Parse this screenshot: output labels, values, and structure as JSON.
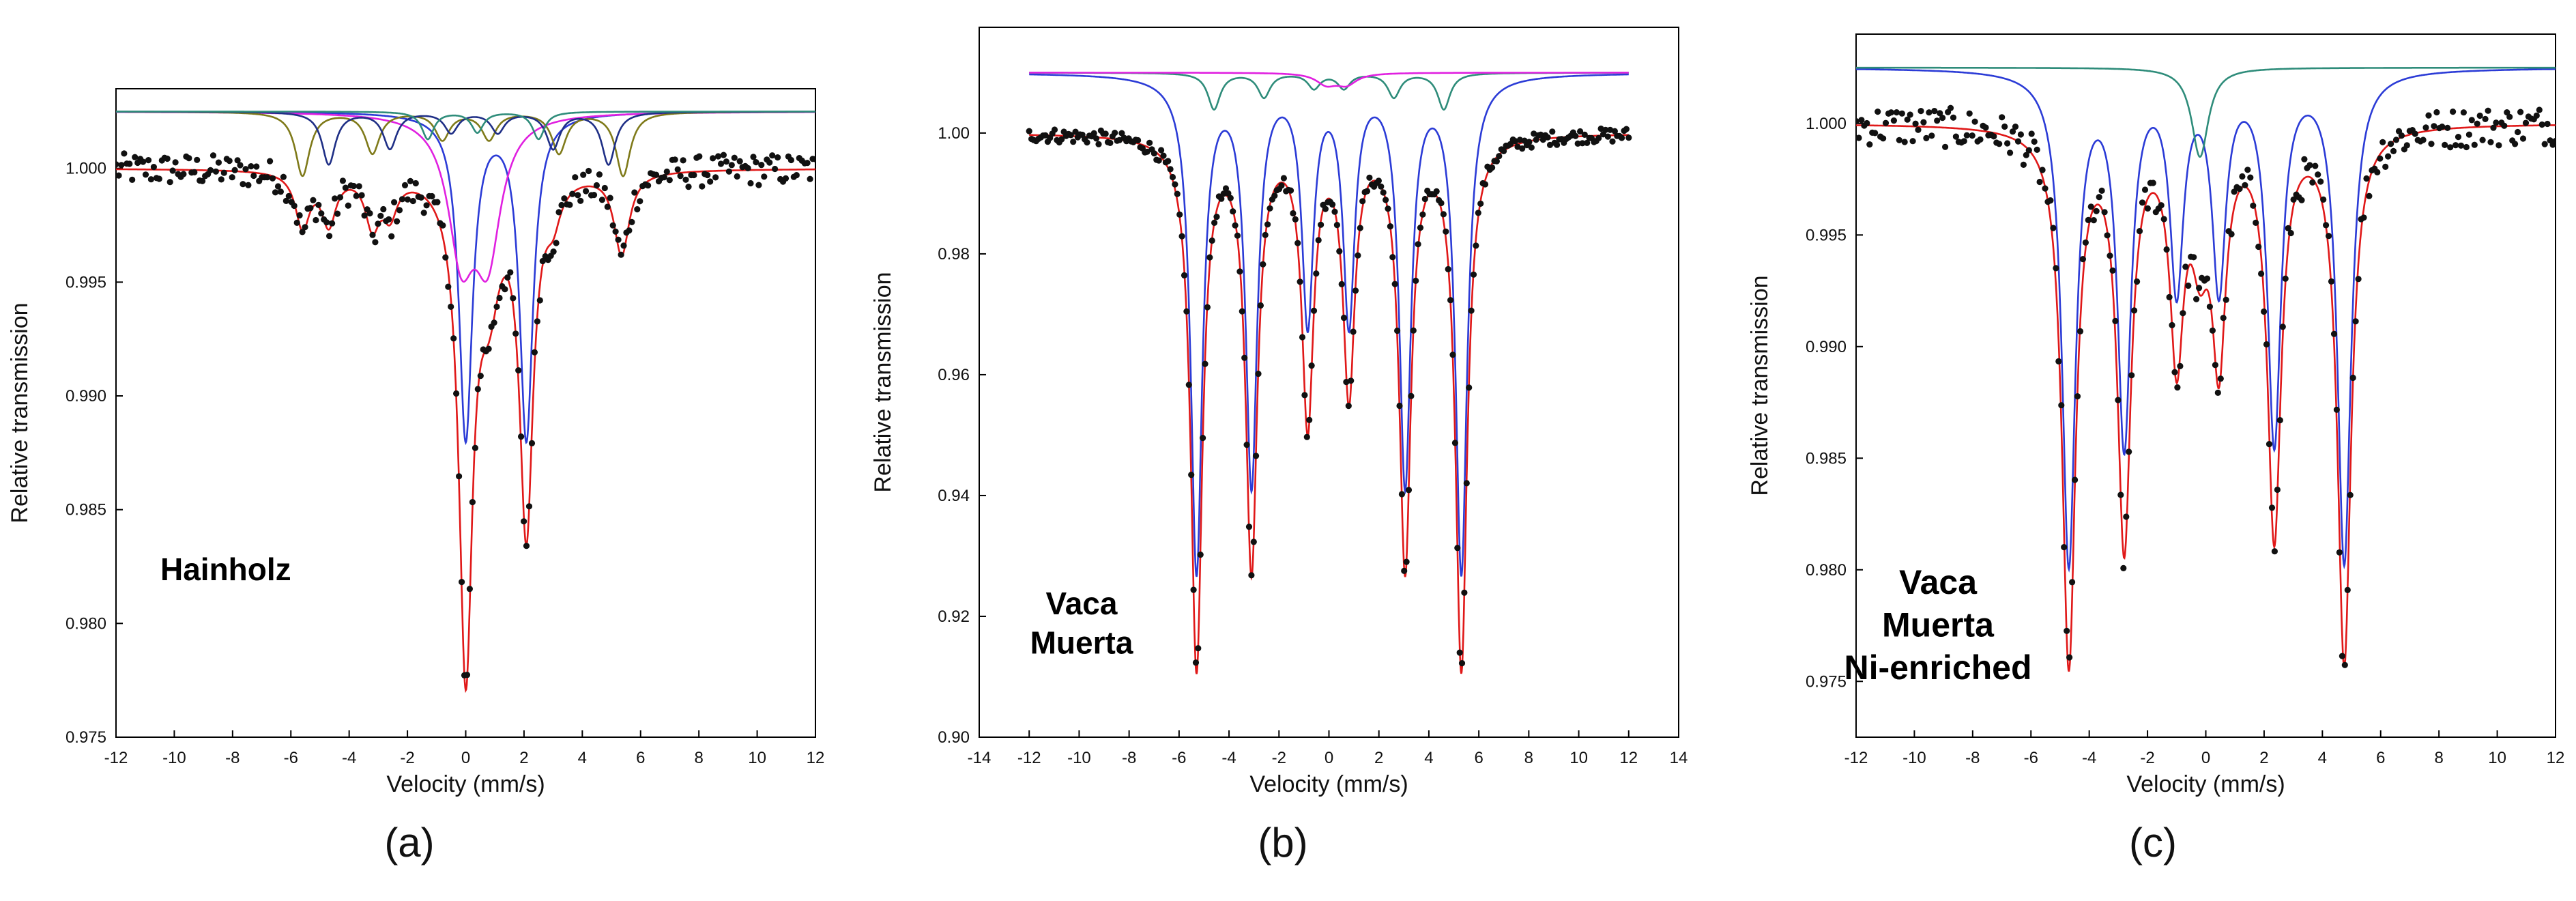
{
  "figure": {
    "panels": [
      "(a)",
      "(b)",
      "(c)"
    ]
  },
  "chart_data": [
    {
      "type": "line",
      "panel": "(a)",
      "sample_label": [
        "Hainholz"
      ],
      "xlabel": "Velocity (mm/s)",
      "ylabel": "Relative transmission",
      "xlim": [
        -12,
        12
      ],
      "ylim": [
        0.975,
        1.0035
      ],
      "xticks": [
        -12,
        -10,
        -8,
        -6,
        -4,
        -2,
        0,
        2,
        4,
        6,
        8,
        10,
        12
      ],
      "yticks": [
        0.975,
        0.98,
        0.985,
        0.99,
        0.995,
        1.0
      ],
      "ytick_labels": [
        "0.975",
        "0.980",
        "0.985",
        "0.990",
        "0.995",
        "1.000"
      ],
      "baseline": 1.0,
      "series": [
        {
          "name": "Doublet 1 (blue)",
          "color": "#2b3bd6",
          "offset": 1.0025,
          "lines": [
            {
              "pos": 0.0,
              "depth": 0.0143,
              "width": 0.28
            },
            {
              "pos": 2.08,
              "depth": 0.0143,
              "width": 0.28
            }
          ]
        },
        {
          "name": "Doublet 2 (magenta)",
          "color": "#e020e0",
          "offset": 1.0025,
          "lines": [
            {
              "pos": -0.15,
              "depth": 0.0058,
              "width": 0.55
            },
            {
              "pos": 0.75,
              "depth": 0.0058,
              "width": 0.55
            }
          ]
        },
        {
          "name": "Sextet 1 (olive)",
          "color": "#7f7a1a",
          "offset": 1.0025,
          "lines": [
            {
              "pos": -5.6,
              "depth": 0.0028,
              "width": 0.3
            },
            {
              "pos": -3.2,
              "depth": 0.0018,
              "width": 0.3
            },
            {
              "pos": -0.8,
              "depth": 0.0012,
              "width": 0.3
            },
            {
              "pos": 0.8,
              "depth": 0.0012,
              "width": 0.3
            },
            {
              "pos": 3.2,
              "depth": 0.0018,
              "width": 0.3
            },
            {
              "pos": 5.4,
              "depth": 0.0028,
              "width": 0.3
            }
          ]
        },
        {
          "name": "Sextet 2 (navy)",
          "color": "#1f2f86",
          "offset": 1.0025,
          "lines": [
            {
              "pos": -4.7,
              "depth": 0.0023,
              "width": 0.28
            },
            {
              "pos": -2.6,
              "depth": 0.0016,
              "width": 0.28
            },
            {
              "pos": -0.5,
              "depth": 0.0009,
              "width": 0.28
            },
            {
              "pos": 1.1,
              "depth": 0.0009,
              "width": 0.28
            },
            {
              "pos": 3.0,
              "depth": 0.0016,
              "width": 0.28
            },
            {
              "pos": 4.9,
              "depth": 0.0023,
              "width": 0.28
            }
          ]
        },
        {
          "name": "Sextet 3 (teal)",
          "color": "#2e8c7a",
          "offset": 1.0025,
          "lines": [
            {
              "pos": -1.3,
              "depth": 0.0012,
              "width": 0.25
            },
            {
              "pos": 0.4,
              "depth": 0.0009,
              "width": 0.25
            },
            {
              "pos": 2.5,
              "depth": 0.0012,
              "width": 0.25
            }
          ]
        },
        {
          "name": "Total fit (red)",
          "color": "#e01818",
          "offset": 1.0,
          "lines": [
            {
              "pos": -5.6,
              "depth": 0.0024,
              "width": 0.3
            },
            {
              "pos": -4.7,
              "depth": 0.0022,
              "width": 0.3
            },
            {
              "pos": -3.2,
              "depth": 0.0022,
              "width": 0.3
            },
            {
              "pos": -2.6,
              "depth": 0.0016,
              "width": 0.3
            },
            {
              "pos": 0.0,
              "depth": 0.0215,
              "width": 0.28
            },
            {
              "pos": 0.8,
              "depth": 0.0045,
              "width": 0.45
            },
            {
              "pos": 2.08,
              "depth": 0.0155,
              "width": 0.28
            },
            {
              "pos": 3.0,
              "depth": 0.0014,
              "width": 0.3
            },
            {
              "pos": 5.35,
              "depth": 0.0036,
              "width": 0.32
            }
          ]
        }
      ],
      "noise_amplitude": 0.0007
    },
    {
      "type": "line",
      "panel": "(b)",
      "sample_label": [
        "Vaca",
        "Muerta"
      ],
      "xlabel": "Velocity (mm/s)",
      "ylabel": "Relative transmission",
      "xlim": [
        -14,
        14
      ],
      "ylim": [
        0.9,
        1.0175
      ],
      "xticks": [
        -14,
        -12,
        -10,
        -8,
        -6,
        -4,
        -2,
        0,
        2,
        4,
        6,
        8,
        10,
        12,
        14
      ],
      "yticks": [
        0.9,
        0.92,
        0.94,
        0.96,
        0.98,
        1.0
      ],
      "ytick_labels": [
        "0.90",
        "0.92",
        "0.94",
        "0.96",
        "0.98",
        "1.00"
      ],
      "baseline": 1.0,
      "data_x_range": [
        -12,
        12
      ],
      "series": [
        {
          "name": "Sextet 1 (blue)",
          "color": "#2b3bd6",
          "offset": 1.01,
          "lines": [
            {
              "pos": -5.3,
              "depth": 0.082,
              "width": 0.28
            },
            {
              "pos": -3.1,
              "depth": 0.067,
              "width": 0.28
            },
            {
              "pos": -0.85,
              "depth": 0.04,
              "width": 0.28
            },
            {
              "pos": 0.8,
              "depth": 0.04,
              "width": 0.28
            },
            {
              "pos": 3.05,
              "depth": 0.067,
              "width": 0.28
            },
            {
              "pos": 5.3,
              "depth": 0.082,
              "width": 0.28
            }
          ]
        },
        {
          "name": "Sextet 2 (teal)",
          "color": "#2e8c7a",
          "offset": 1.01,
          "lines": [
            {
              "pos": -4.6,
              "depth": 0.006,
              "width": 0.3
            },
            {
              "pos": -2.6,
              "depth": 0.004,
              "width": 0.3
            },
            {
              "pos": -0.6,
              "depth": 0.0025,
              "width": 0.3
            },
            {
              "pos": 0.6,
              "depth": 0.0025,
              "width": 0.3
            },
            {
              "pos": 2.6,
              "depth": 0.004,
              "width": 0.3
            },
            {
              "pos": 4.6,
              "depth": 0.006,
              "width": 0.3
            }
          ]
        },
        {
          "name": "Doublet (magenta)",
          "color": "#e020e0",
          "offset": 1.01,
          "lines": [
            {
              "pos": -0.1,
              "depth": 0.0018,
              "width": 0.5
            },
            {
              "pos": 0.7,
              "depth": 0.0018,
              "width": 0.5
            }
          ]
        },
        {
          "name": "Total fit (red)",
          "color": "#e01818",
          "offset": 1.0,
          "lines": [
            {
              "pos": -5.3,
              "depth": 0.088,
              "width": 0.28
            },
            {
              "pos": -3.1,
              "depth": 0.071,
              "width": 0.28
            },
            {
              "pos": -0.85,
              "depth": 0.047,
              "width": 0.28
            },
            {
              "pos": 0.8,
              "depth": 0.042,
              "width": 0.28
            },
            {
              "pos": 3.05,
              "depth": 0.071,
              "width": 0.28
            },
            {
              "pos": 5.3,
              "depth": 0.088,
              "width": 0.28
            }
          ]
        }
      ],
      "noise_amplitude": 0.0012
    },
    {
      "type": "line",
      "panel": "(c)",
      "sample_label": [
        "Vaca",
        "Muerta",
        "Ni-enriched"
      ],
      "xlabel": "Velocity (mm/s)",
      "ylabel": "Relative transmission",
      "xlim": [
        -12,
        12
      ],
      "ylim": [
        0.9725,
        1.004
      ],
      "xticks": [
        -12,
        -10,
        -8,
        -6,
        -4,
        -2,
        0,
        2,
        4,
        6,
        8,
        10,
        12
      ],
      "yticks": [
        0.975,
        0.98,
        0.985,
        0.99,
        0.995,
        1.0
      ],
      "ytick_labels": [
        "0.975",
        "0.980",
        "0.985",
        "0.990",
        "0.995",
        "1.000"
      ],
      "baseline": 1.0,
      "series": [
        {
          "name": "Sextet (blue)",
          "color": "#2b3bd6",
          "offset": 1.0025,
          "lines": [
            {
              "pos": -4.7,
              "depth": 0.022,
              "width": 0.28
            },
            {
              "pos": -2.8,
              "depth": 0.0165,
              "width": 0.28
            },
            {
              "pos": -1.0,
              "depth": 0.0095,
              "width": 0.28
            },
            {
              "pos": 0.45,
              "depth": 0.0095,
              "width": 0.28
            },
            {
              "pos": 2.35,
              "depth": 0.0165,
              "width": 0.28
            },
            {
              "pos": 4.75,
              "depth": 0.022,
              "width": 0.28
            }
          ]
        },
        {
          "name": "Singlet (teal)",
          "color": "#2e8c7a",
          "offset": 1.0025,
          "lines": [
            {
              "pos": -0.2,
              "depth": 0.004,
              "width": 0.35
            }
          ]
        },
        {
          "name": "Total fit (red)",
          "color": "#e01818",
          "offset": 1.0,
          "lines": [
            {
              "pos": -4.7,
              "depth": 0.024,
              "width": 0.28
            },
            {
              "pos": -2.8,
              "depth": 0.0185,
              "width": 0.28
            },
            {
              "pos": -1.0,
              "depth": 0.0098,
              "width": 0.28
            },
            {
              "pos": -0.2,
              "depth": 0.0045,
              "width": 0.35
            },
            {
              "pos": 0.45,
              "depth": 0.0098,
              "width": 0.28
            },
            {
              "pos": 2.35,
              "depth": 0.0182,
              "width": 0.28
            },
            {
              "pos": 4.75,
              "depth": 0.024,
              "width": 0.28
            }
          ]
        }
      ],
      "noise_amplitude": 0.0009
    }
  ]
}
